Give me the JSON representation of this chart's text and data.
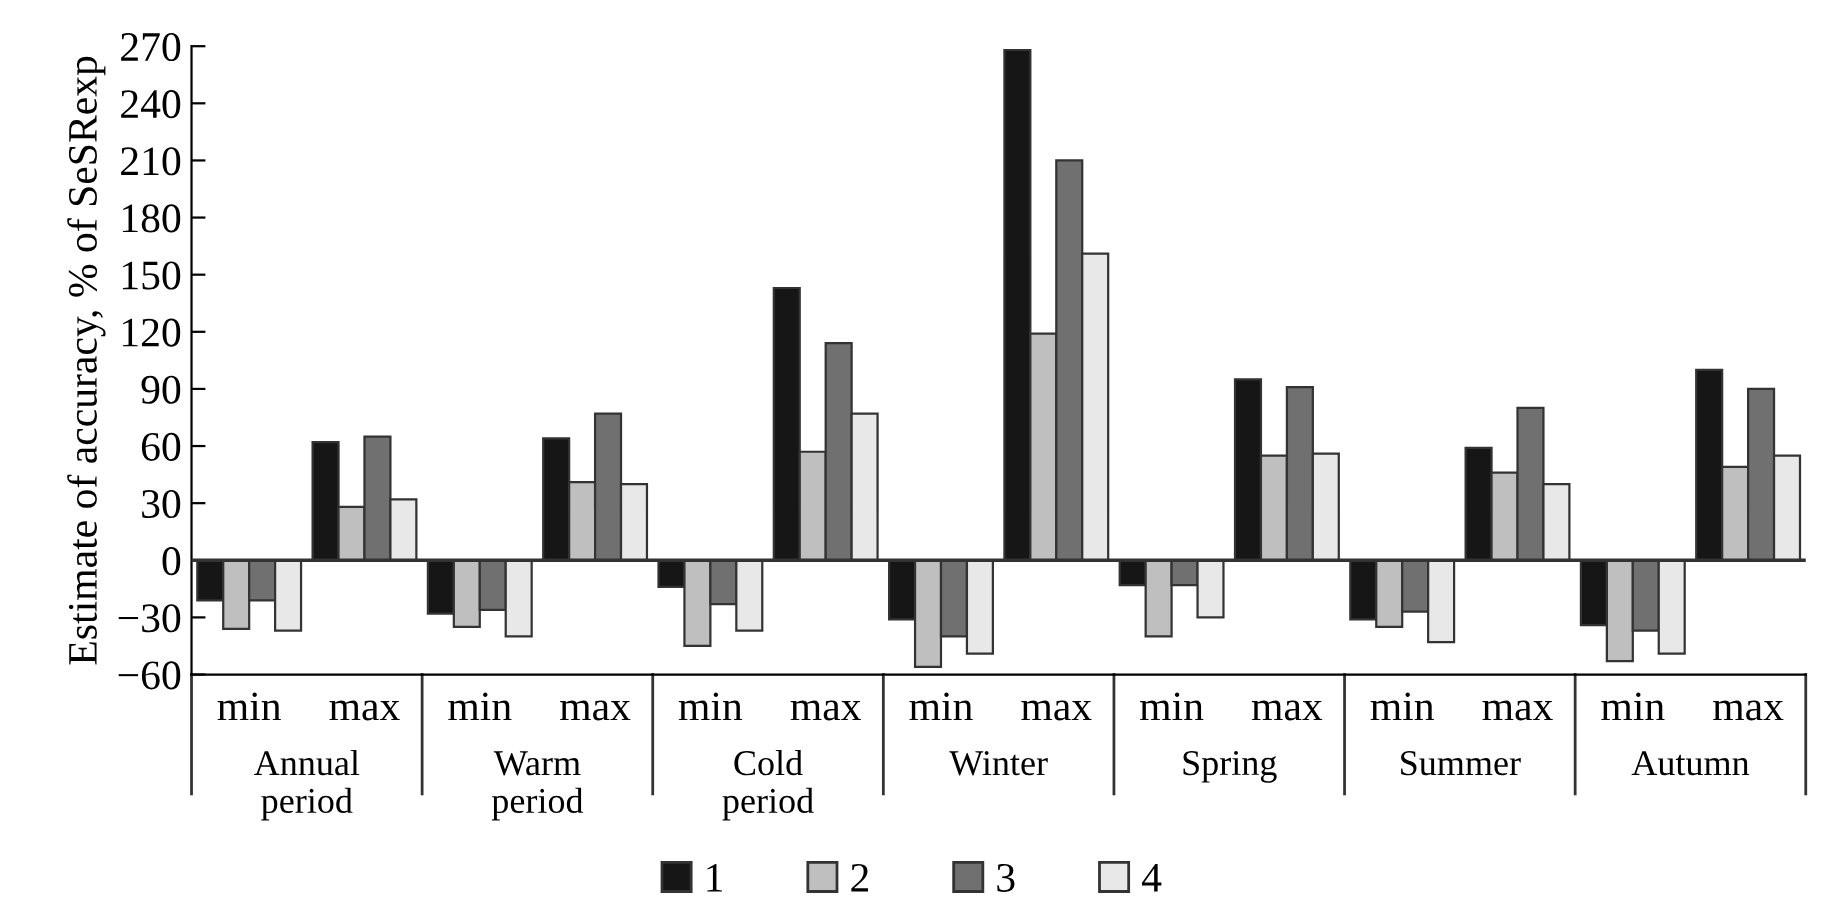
{
  "chart_data": {
    "type": "bar",
    "ylabel": "Estimate of accuracy, % of SeSRexp",
    "categories": [
      "min",
      "max",
      "min",
      "max",
      "min",
      "max",
      "min",
      "max",
      "min",
      "max",
      "min",
      "max",
      "min",
      "max"
    ],
    "annotations": [
      "Annual\nperiod",
      "Warm\nperiod",
      "Cold\nperiod",
      "Winter",
      "Spring",
      "Summer",
      "Autumn"
    ],
    "series": [
      {
        "name": "1",
        "color": "#161616",
        "values": [
          -21,
          62,
          -28,
          64,
          -14,
          143,
          -31,
          268,
          -13,
          95,
          -31,
          59,
          -34,
          100
        ]
      },
      {
        "name": "2",
        "color": "#bfbfbf",
        "values": [
          -36,
          28,
          -35,
          41,
          -45,
          57,
          -56,
          119,
          -40,
          55,
          -35,
          46,
          -53,
          49
        ]
      },
      {
        "name": "3",
        "color": "#707070",
        "values": [
          -21,
          65,
          -26,
          77,
          -23,
          114,
          -40,
          210,
          -13,
          91,
          -27,
          80,
          -37,
          90
        ]
      },
      {
        "name": "4",
        "color": "#e8e8e8",
        "values": [
          -37,
          32,
          -40,
          40,
          -37,
          77,
          -49,
          161,
          -30,
          56,
          -43,
          40,
          -49,
          55
        ]
      }
    ],
    "ylim": [
      -60,
      270
    ],
    "yticks": [
      {
        "value": -60,
        "label": "−60"
      },
      {
        "value": -30,
        "label": "−30"
      },
      0,
      30,
      60,
      90,
      120,
      150,
      180,
      210,
      240,
      270
    ],
    "legend": "bottom"
  }
}
